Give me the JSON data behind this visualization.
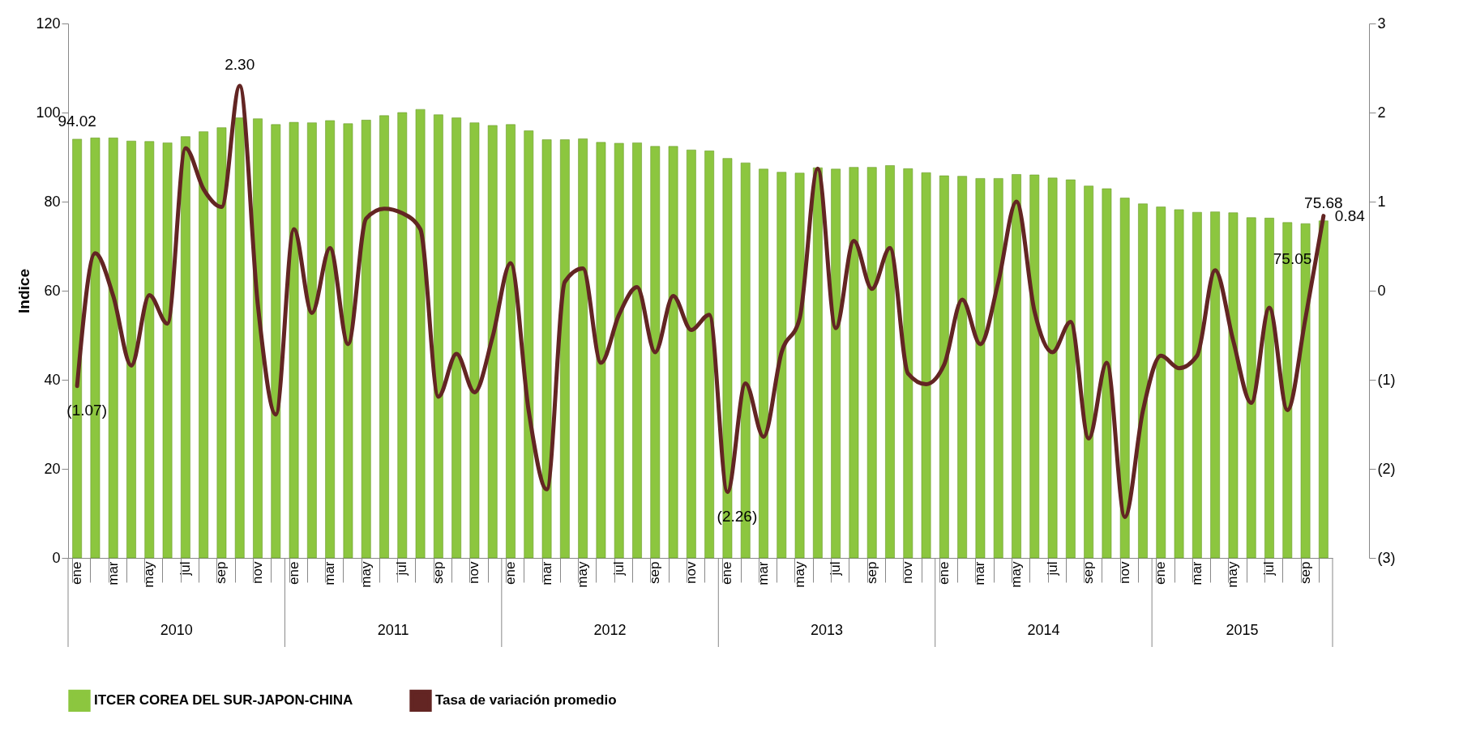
{
  "chart_data": {
    "type": "bar",
    "categories": [
      "ene",
      null,
      "mar",
      null,
      "may",
      null,
      "jul",
      null,
      "sep",
      null,
      "nov",
      null,
      "ene",
      null,
      "mar",
      null,
      "may",
      null,
      "jul",
      null,
      "sep",
      null,
      "nov",
      null,
      "ene",
      null,
      "mar",
      null,
      "may",
      null,
      "jul",
      null,
      "sep",
      null,
      "nov",
      null,
      "ene",
      null,
      "mar",
      null,
      "may",
      null,
      "jul",
      null,
      "sep",
      null,
      "nov",
      null,
      "ene",
      null,
      "mar",
      null,
      "may",
      null,
      "jul",
      null,
      "sep",
      null,
      "nov",
      null,
      "ene",
      null,
      "mar",
      null,
      "may",
      null,
      "jul",
      null,
      "sep",
      null
    ],
    "ylabel": "Indice",
    "ylim": [
      0,
      120
    ],
    "yticks": [
      0,
      20,
      40,
      60,
      80,
      100,
      120
    ],
    "y2lim": [
      -3,
      3
    ],
    "y2ticks": [
      {
        "value": -3,
        "label": "(3)"
      },
      {
        "value": -2,
        "label": "(2)"
      },
      {
        "value": -1,
        "label": "(1)"
      },
      0,
      1,
      2,
      3
    ],
    "grid": false,
    "legend": "bottom",
    "annotations": [
      "2010",
      "2011",
      "2012",
      "2013",
      "2014",
      "2015"
    ],
    "series": [
      {
        "name": "ITCER COREA DEL SUR-JAPON-CHINA",
        "color": "#8cc63f",
        "values": [
          94.02,
          94.3,
          94.3,
          93.6,
          93.5,
          93.2,
          94.6,
          95.7,
          96.6,
          98.8,
          98.6,
          97.3,
          97.8,
          97.7,
          98.2,
          97.5,
          98.3,
          99.3,
          100.0,
          100.7,
          99.5,
          98.8,
          97.7,
          97.1,
          97.3,
          95.9,
          93.9,
          93.9,
          94.1,
          93.3,
          93.1,
          93.2,
          92.4,
          92.4,
          91.6,
          91.4,
          89.7,
          88.7,
          87.3,
          86.6,
          86.4,
          87.6,
          87.3,
          87.7,
          87.7,
          88.1,
          87.4,
          86.5,
          85.8,
          85.7,
          85.2,
          85.2,
          86.1,
          86.0,
          85.3,
          84.9,
          83.5,
          82.9,
          80.8,
          79.5,
          78.8,
          78.2,
          77.6,
          77.7,
          77.5,
          76.4,
          76.3,
          75.3,
          75.05,
          75.68
        ],
        "value_labels": [
          "94.02",
          null,
          null,
          null,
          null,
          null,
          null,
          null,
          null,
          null,
          null,
          null,
          null,
          null,
          null,
          null,
          null,
          null,
          null,
          null,
          null,
          null,
          null,
          null,
          null,
          null,
          null,
          null,
          null,
          null,
          null,
          null,
          null,
          null,
          null,
          null,
          null,
          null,
          null,
          null,
          null,
          null,
          null,
          null,
          null,
          null,
          null,
          null,
          null,
          null,
          null,
          null,
          null,
          null,
          null,
          null,
          null,
          null,
          null,
          null,
          null,
          null,
          null,
          null,
          null,
          null,
          null,
          null,
          "75.05",
          "75.68"
        ]
      },
      {
        "name": "Tasa de variación promedio",
        "type": "line",
        "axis": "y2",
        "color": "#632523",
        "values": [
          -1.07,
          0.42,
          -0.06,
          -0.84,
          -0.05,
          -0.37,
          1.6,
          1.14,
          0.94,
          2.3,
          -0.15,
          -1.39,
          0.69,
          -0.25,
          0.48,
          -0.6,
          0.81,
          0.92,
          0.87,
          0.69,
          -1.19,
          -0.71,
          -1.14,
          -0.52,
          0.31,
          -1.35,
          -2.23,
          0.1,
          0.25,
          -0.81,
          -0.27,
          0.04,
          -0.69,
          -0.06,
          -0.44,
          -0.27,
          -2.26,
          -1.04,
          -1.64,
          -0.69,
          -0.31,
          1.37,
          -0.42,
          0.56,
          0.02,
          0.48,
          -0.93,
          -1.05,
          -0.83,
          -0.1,
          -0.6,
          0.1,
          1.0,
          -0.23,
          -0.69,
          -0.35,
          -1.66,
          -0.81,
          -2.54,
          -1.35,
          -0.73,
          -0.87,
          -0.73,
          0.23,
          -0.56,
          -1.26,
          -0.19,
          -1.34,
          -0.31,
          0.84
        ],
        "value_labels": [
          "(1.07)",
          null,
          null,
          null,
          null,
          null,
          null,
          null,
          null,
          "2.30",
          null,
          null,
          null,
          null,
          null,
          null,
          null,
          null,
          null,
          null,
          null,
          null,
          null,
          null,
          null,
          null,
          null,
          null,
          null,
          null,
          null,
          null,
          null,
          null,
          null,
          null,
          "(2.26)",
          null,
          null,
          null,
          null,
          null,
          null,
          null,
          null,
          null,
          null,
          null,
          null,
          null,
          null,
          null,
          null,
          null,
          null,
          null,
          null,
          null,
          null,
          null,
          null,
          null,
          null,
          null,
          null,
          null,
          null,
          null,
          null,
          "0.84"
        ]
      }
    ]
  }
}
